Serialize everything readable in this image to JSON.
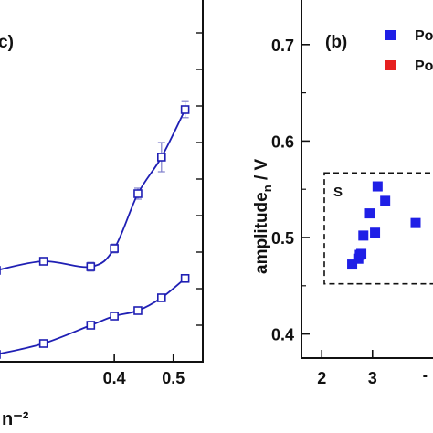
{
  "chart_data": [
    {
      "panel_label": "c)",
      "type": "line",
      "x_tick_labels": [
        "0.4",
        "0.5"
      ],
      "xlabel_visible_fragment": "n⁻²",
      "xlim": [
        0.2,
        0.55
      ],
      "ylim": [
        0,
        10
      ],
      "marker": "open-square",
      "line_color": "#1f1fb4",
      "series": [
        {
          "x": [
            0.2,
            0.28,
            0.36,
            0.4,
            0.44,
            0.48,
            0.52
          ],
          "y": [
            2.5,
            2.75,
            2.6,
            3.1,
            4.6,
            5.6,
            6.9
          ],
          "err": [
            0.0,
            0.0,
            0.12,
            0.12,
            0.15,
            0.4,
            0.22
          ]
        },
        {
          "x": [
            0.2,
            0.28,
            0.36,
            0.4,
            0.44,
            0.48,
            0.52
          ],
          "y": [
            0.2,
            0.5,
            1.0,
            1.25,
            1.4,
            1.75,
            2.28
          ],
          "err": [
            0.0,
            0.0,
            0.0,
            0.08,
            0.0,
            0.06,
            0.0
          ]
        }
      ]
    },
    {
      "panel_label": "(b)",
      "type": "scatter",
      "ylabel": "amplitude",
      "ylabel_subscript": "n",
      "ylabel_unit": " / V",
      "y_tick_labels": [
        "0.4",
        "0.5",
        "0.6",
        "0.7"
      ],
      "x_tick_labels": [
        "2",
        "3"
      ],
      "xlim": [
        1.6,
        4.3
      ],
      "ylim": [
        0.375,
        0.75
      ],
      "legend": [
        {
          "label": "Po",
          "color": "#1f1fe6"
        },
        {
          "label": "Po",
          "color": "#e62020"
        }
      ],
      "box_label": "S",
      "box": {
        "x": [
          2.05,
          4.3
        ],
        "y": [
          0.452,
          0.567
        ]
      },
      "series": [
        {
          "color": "#1f1fe6",
          "x": [
            2.6,
            2.72,
            2.75,
            2.78,
            2.82,
            2.95,
            3.05,
            3.1,
            3.25,
            3.85
          ],
          "y": [
            0.472,
            0.478,
            0.482,
            0.483,
            0.502,
            0.525,
            0.505,
            0.553,
            0.538,
            0.515
          ]
        }
      ]
    }
  ]
}
